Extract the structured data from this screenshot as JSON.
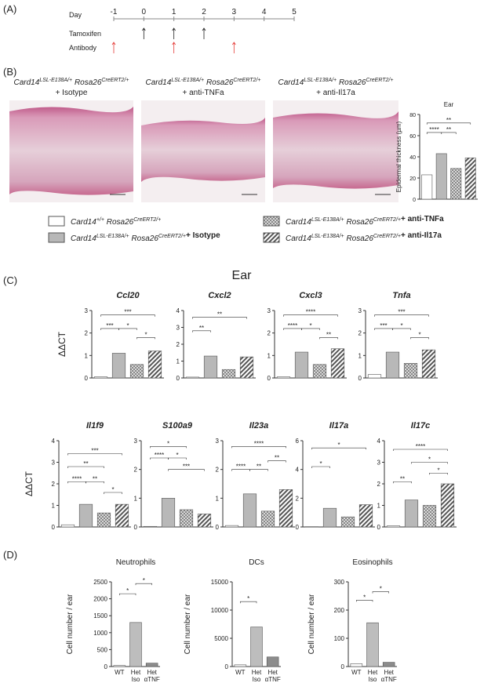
{
  "panels": [
    "(A)",
    "(B)",
    "(C)",
    "(D)"
  ],
  "timeline": {
    "label": "Day",
    "xlim": [
      -1,
      5
    ],
    "xticks": [
      -1,
      0,
      1,
      2,
      3,
      4,
      5
    ],
    "rows": [
      {
        "name": "Tamoxifen",
        "color": "#222222",
        "days": [
          0,
          1,
          2
        ]
      },
      {
        "name": "Antibody",
        "color": "#e53935",
        "days": [
          -1,
          1,
          3
        ]
      }
    ]
  },
  "histology": [
    {
      "genotype": [
        "Card14",
        "LSL-E138A/+",
        "Rosa26",
        "CreERT2/+"
      ],
      "treatment": "+ Isotype"
    },
    {
      "genotype": [
        "Card14",
        "LSL-E138A/+",
        "Rosa26",
        "CreERT2/+"
      ],
      "treatment": "+ anti-TNFa"
    },
    {
      "genotype": [
        "Card14",
        "LSL-E138A/+",
        "Rosa26",
        "CreERT2/+"
      ],
      "treatment": "+ anti-Il17a"
    }
  ],
  "legend": [
    {
      "genotype": [
        "Card14",
        "+/+",
        "Rosa26",
        "CreERT2/+"
      ]
    },
    {
      "genotype": [
        "Card14",
        "LSL-E138A/+",
        "Rosa26",
        "CreERT2/+"
      ],
      "treatment": "+ Isotype"
    },
    {
      "genotype": [
        "Card14",
        "LSL-E138A/+",
        "Rosa26",
        "CreERT2/+"
      ],
      "treatment": "+ anti-TNFa"
    },
    {
      "genotype": [
        "Card14",
        "LSL-E138A/+",
        "Rosa26",
        "CreERT2/+"
      ],
      "treatment": "+ anti-Il17a"
    }
  ],
  "group_fills": [
    "#ffffff",
    "#b8b8b8",
    "checker",
    "hatch"
  ],
  "section_title": "Ear",
  "chart_data": [
    {
      "type": "bar",
      "title": "Ear",
      "ylabel": "Epidermal thickness (µm)",
      "values": [
        23,
        43,
        29,
        39
      ],
      "ylim": [
        0,
        80
      ],
      "yticks": [
        0,
        20,
        40,
        60,
        80
      ],
      "annotations": [
        "****",
        "**",
        "**"
      ]
    },
    {
      "type": "bar",
      "title": "Ccl20",
      "ylabel": "ΔΔCT",
      "values": [
        0.05,
        1.1,
        0.6,
        1.2
      ],
      "ylim": [
        0,
        3
      ],
      "yticks": [
        0,
        1,
        2,
        3
      ],
      "annotations": [
        "***",
        "***",
        "*",
        "*"
      ]
    },
    {
      "type": "bar",
      "title": "Cxcl2",
      "values": [
        0.05,
        1.3,
        0.5,
        1.25
      ],
      "ylim": [
        0,
        4
      ],
      "yticks": [
        0,
        1,
        2,
        3,
        4
      ],
      "annotations": [
        "**",
        "**"
      ]
    },
    {
      "type": "bar",
      "title": "Cxcl3",
      "values": [
        0.05,
        1.15,
        0.6,
        1.3
      ],
      "ylim": [
        0,
        3
      ],
      "yticks": [
        0,
        1,
        2,
        3
      ],
      "annotations": [
        "****",
        "****",
        "*",
        "**"
      ]
    },
    {
      "type": "bar",
      "title": "Tnfa",
      "values": [
        0.15,
        1.15,
        0.65,
        1.25
      ],
      "ylim": [
        0,
        3
      ],
      "yticks": [
        0,
        1,
        2,
        3
      ],
      "annotations": [
        "***",
        "***",
        "*",
        "*"
      ]
    },
    {
      "type": "bar",
      "title": "Il1f9",
      "ylabel": "ΔΔCT",
      "values": [
        0.1,
        1.05,
        0.65,
        1.05
      ],
      "ylim": [
        0,
        4
      ],
      "yticks": [
        0,
        1,
        2,
        3,
        4
      ],
      "annotations": [
        "***",
        "**",
        "****",
        "**",
        "*"
      ]
    },
    {
      "type": "bar",
      "title": "S100a9",
      "values": [
        0.02,
        1.0,
        0.6,
        0.45
      ],
      "ylim": [
        0,
        3
      ],
      "yticks": [
        0,
        1,
        2,
        3
      ],
      "annotations": [
        "*",
        "****",
        "*",
        "***"
      ]
    },
    {
      "type": "bar",
      "title": "Il23a",
      "values": [
        0.05,
        1.15,
        0.55,
        1.3
      ],
      "ylim": [
        0,
        3
      ],
      "yticks": [
        0,
        1,
        2,
        3
      ],
      "annotations": [
        "****",
        "****",
        "**",
        "**"
      ]
    },
    {
      "type": "bar",
      "title": "Il17a",
      "values": [
        0.02,
        1.3,
        0.7,
        1.55
      ],
      "ylim": [
        0,
        6
      ],
      "yticks": [
        0,
        2,
        4,
        6
      ],
      "annotations": [
        "*",
        "*"
      ]
    },
    {
      "type": "bar",
      "title": "Il17c",
      "values": [
        0.05,
        1.25,
        1.0,
        2.0
      ],
      "ylim": [
        0,
        4
      ],
      "yticks": [
        0,
        1,
        2,
        3,
        4
      ],
      "annotations": [
        "****",
        "*",
        "**",
        "*"
      ]
    },
    {
      "type": "bar",
      "title": "Neutrophils",
      "ylabel": "Cell number / ear",
      "categories": [
        "WT",
        "Het Iso",
        "Het αTNF"
      ],
      "values": [
        30,
        1300,
        100
      ],
      "fills": [
        "#ffffff",
        "#bdbdbd",
        "#8c8c8c"
      ],
      "ylim": [
        0,
        2500
      ],
      "yticks": [
        0,
        500,
        1000,
        1500,
        2000,
        2500
      ],
      "annotations": [
        "*",
        "*"
      ]
    },
    {
      "type": "bar",
      "title": "DCs",
      "ylabel": "Cell number / ear",
      "categories": [
        "WT",
        "Het Iso",
        "Het αTNF"
      ],
      "values": [
        300,
        7000,
        1700
      ],
      "fills": [
        "#ffffff",
        "#bdbdbd",
        "#8c8c8c"
      ],
      "ylim": [
        0,
        15000
      ],
      "yticks": [
        0,
        5000,
        10000,
        15000
      ],
      "annotations": [
        "*"
      ]
    },
    {
      "type": "bar",
      "title": "Eosinophils",
      "ylabel": "Cell number / ear",
      "categories": [
        "WT",
        "Het Iso",
        "Het αTNF"
      ],
      "values": [
        10,
        155,
        15
      ],
      "fills": [
        "#ffffff",
        "#bdbdbd",
        "#8c8c8c"
      ],
      "ylim": [
        0,
        300
      ],
      "yticks": [
        0,
        100,
        200,
        300
      ],
      "annotations": [
        "*",
        "*"
      ]
    }
  ]
}
